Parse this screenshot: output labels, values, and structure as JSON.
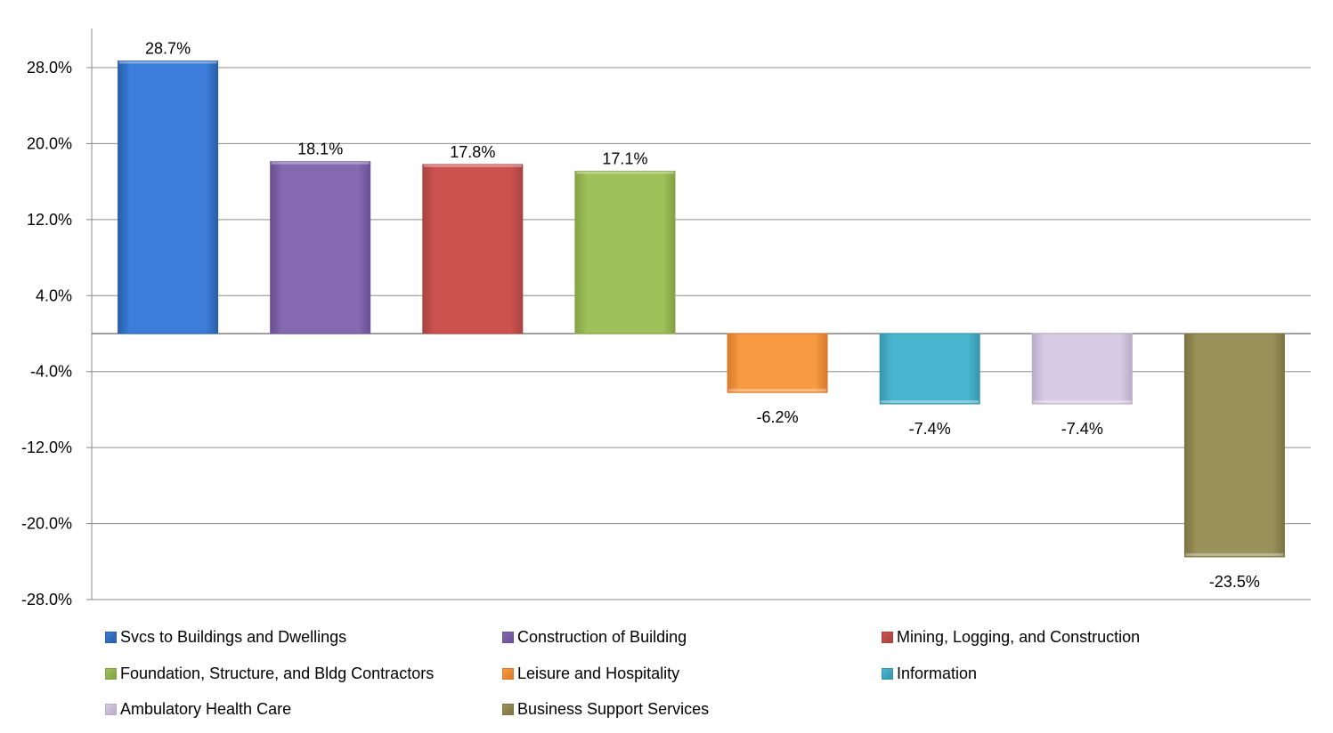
{
  "chart_data": {
    "type": "bar",
    "title": "",
    "xlabel": "",
    "ylabel": "",
    "ylim": [
      -28,
      32
    ],
    "yticks": [
      28,
      20,
      12,
      4,
      -4,
      -12,
      -20,
      -28
    ],
    "ytick_labels": [
      "28.0%",
      "20.0%",
      "12.0%",
      "4.0%",
      "-4.0%",
      "-12.0%",
      "-20.0%",
      "-28.0%"
    ],
    "grid": true,
    "legend_position": "bottom",
    "categories": [
      "Svcs to Buildings and Dwellings",
      "Construction of Building",
      "Mining, Logging, and Construction",
      "Foundation, Structure, and Bldg Contractors",
      "Leisure and Hospitality",
      "Information",
      "Ambulatory Health Care",
      "Business Support Services"
    ],
    "values": [
      28.7,
      18.1,
      17.8,
      17.1,
      -6.2,
      -7.4,
      -7.4,
      -23.5
    ],
    "data_labels": [
      "28.7%",
      "18.1%",
      "17.8%",
      "17.1%",
      "-6.2%",
      "-7.4%",
      "-7.4%",
      "-23.5%"
    ],
    "colors": [
      "#3b7dd8",
      "#8469b0",
      "#cc5250",
      "#a0c05a",
      "#f79a42",
      "#4ab5cf",
      "#d6cbe3",
      "#9a915a"
    ],
    "colors_dark": [
      "#2a5fa8",
      "#6a4f93",
      "#a84340",
      "#83a244",
      "#d87a2a",
      "#3796ad",
      "#b9acc9",
      "#7d7444"
    ]
  }
}
